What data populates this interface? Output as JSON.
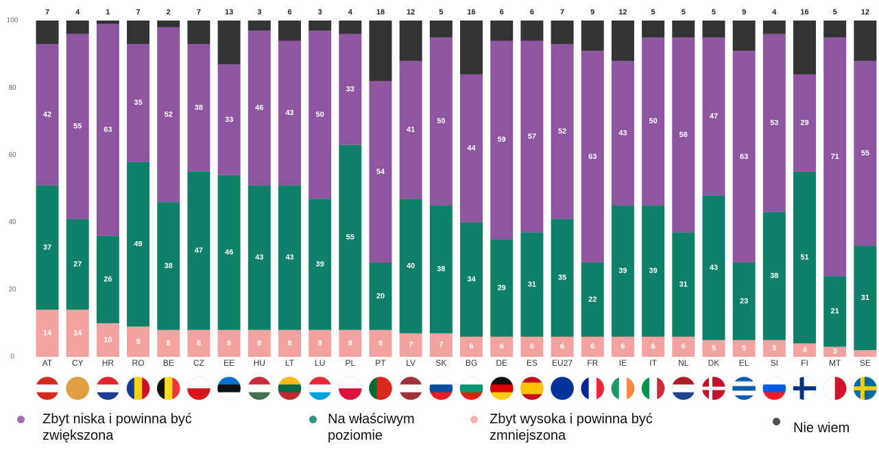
{
  "chart_data": {
    "type": "stacked_bar",
    "categories": [
      "AT",
      "CY",
      "HR",
      "RO",
      "BE",
      "CZ",
      "EE",
      "HU",
      "LT",
      "LU",
      "PL",
      "PT",
      "LV",
      "SK",
      "BG",
      "DE",
      "ES",
      "EU27",
      "FR",
      "IE",
      "IT",
      "NL",
      "DK",
      "EL",
      "SI",
      "FI",
      "MT",
      "SE"
    ],
    "series": [
      {
        "name": "Zbyt wysoka i powinna być zmniejszona",
        "color": "#f4a3a1",
        "values": [
          14,
          14,
          10,
          9,
          8,
          8,
          8,
          8,
          8,
          8,
          8,
          8,
          7,
          7,
          6,
          6,
          6,
          6,
          6,
          6,
          6,
          6,
          5,
          5,
          5,
          4,
          3,
          2
        ]
      },
      {
        "name": "Na właściwym poziomie",
        "color": "#0e806a",
        "values": [
          37,
          27,
          26,
          49,
          38,
          47,
          46,
          43,
          43,
          39,
          55,
          20,
          40,
          38,
          34,
          29,
          31,
          35,
          22,
          39,
          39,
          31,
          43,
          23,
          38,
          51,
          21,
          31
        ]
      },
      {
        "name": "Zbyt niska i powinna być zwiększona",
        "color": "#8e56a0",
        "values": [
          42,
          55,
          63,
          35,
          52,
          38,
          33,
          46,
          43,
          50,
          33,
          54,
          41,
          50,
          44,
          59,
          57,
          52,
          63,
          43,
          50,
          58,
          47,
          63,
          53,
          29,
          71,
          55
        ]
      },
      {
        "name": "Nie wiem",
        "color": "#333333",
        "values": [
          7,
          4,
          1,
          7,
          2,
          7,
          13,
          3,
          6,
          3,
          4,
          18,
          12,
          5,
          16,
          6,
          6,
          7,
          9,
          12,
          5,
          5,
          5,
          9,
          4,
          16,
          5,
          12
        ]
      }
    ],
    "ylim": [
      0,
      100
    ],
    "yticks": [
      0,
      20,
      40,
      60,
      80,
      100
    ]
  }
}
